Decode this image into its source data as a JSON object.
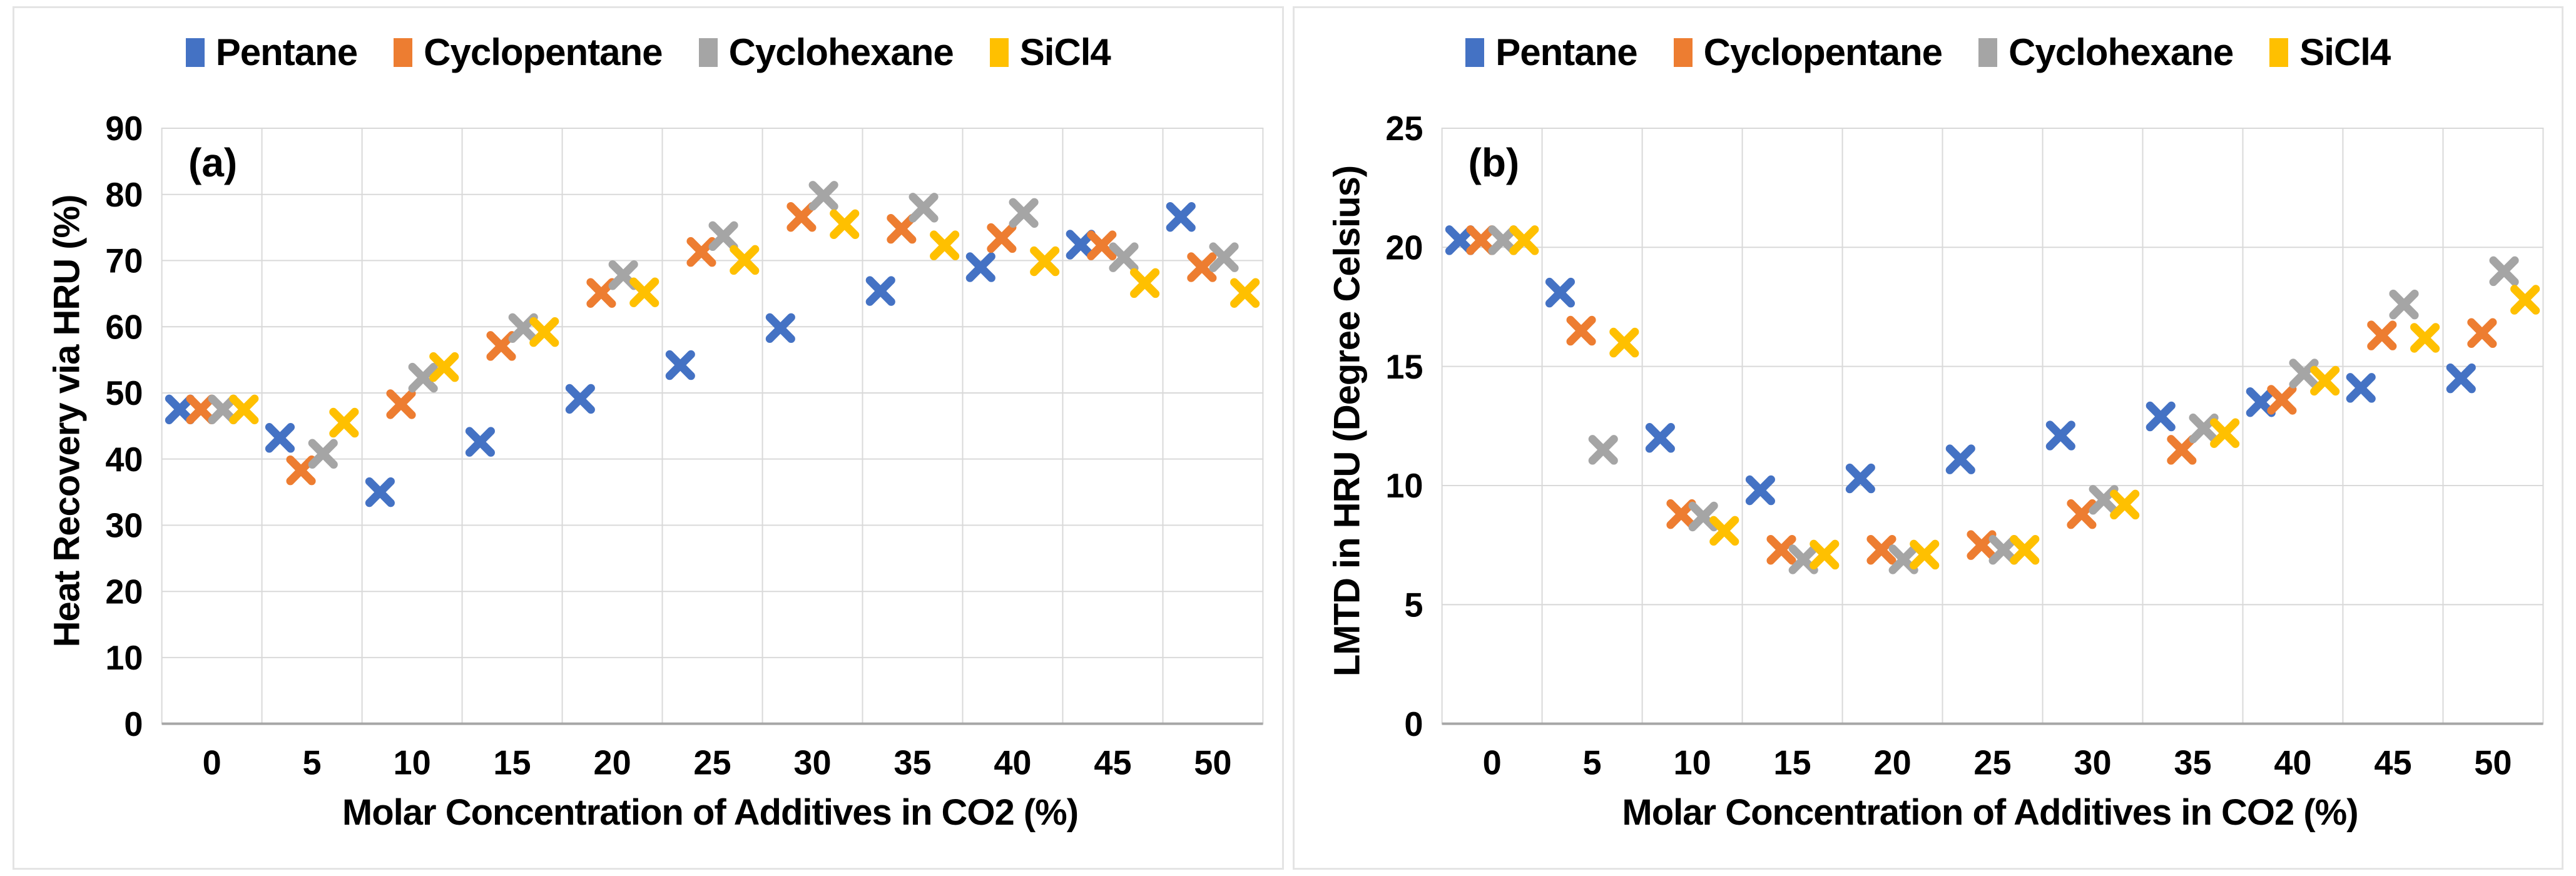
{
  "figure": {
    "background": "#ffffff",
    "panel_border_color": "#e4e4e4"
  },
  "palette": {
    "blue": "#4472C4",
    "orange": "#ED7D31",
    "gray": "#A5A5A5",
    "yellow": "#FFC000",
    "grid": "#D9D9D9",
    "axis": "#A6A6A6",
    "text": "#000000"
  },
  "legend": {
    "items": [
      {
        "label": "Pentane",
        "color": "#4472C4"
      },
      {
        "label": "Cyclopentane",
        "color": "#ED7D31"
      },
      {
        "label": "Cyclohexane",
        "color": "#A5A5A5"
      },
      {
        "label": "SiCl4",
        "color": "#FFC000"
      }
    ]
  },
  "panels": [
    {
      "letter": "(a)",
      "ylabel": "Heat Recovery via HRU (%)",
      "xlabel": "Molar Concentration of Additives in CO2 (%)"
    },
    {
      "letter": "(b)",
      "ylabel": "LMTD in HRU (Degree Celsius)",
      "xlabel": "Molar Concentration of Additives in CO2 (%)"
    }
  ],
  "chart_data": [
    {
      "type": "scatter",
      "panel": "(a)",
      "marker": "x",
      "title": "",
      "xlabel": "Molar Concentration of Additives in CO2 (%)",
      "ylabel": "Heat Recovery via HRU (%)",
      "xlim": [
        -2.5,
        52.5
      ],
      "ylim": [
        0,
        90
      ],
      "grid": true,
      "legend_position": "top",
      "x": [
        0,
        5,
        10,
        15,
        20,
        25,
        30,
        35,
        40,
        45,
        50
      ],
      "xticks": [
        0,
        5,
        10,
        15,
        20,
        25,
        30,
        35,
        40,
        45,
        50
      ],
      "yticks": [
        0,
        10,
        20,
        30,
        40,
        50,
        60,
        70,
        80,
        90
      ],
      "series": [
        {
          "name": "Pentane",
          "color": "#4472C4",
          "values": [
            47.5,
            43.2,
            35.0,
            42.6,
            49.1,
            54.2,
            59.8,
            65.4,
            69.0,
            72.4,
            76.6
          ]
        },
        {
          "name": "Cyclopentane",
          "color": "#ED7D31",
          "values": [
            47.5,
            38.3,
            48.3,
            57.1,
            65.1,
            71.3,
            76.6,
            74.8,
            73.4,
            72.3,
            69.0
          ]
        },
        {
          "name": "Cyclohexane",
          "color": "#A5A5A5",
          "values": [
            47.5,
            40.8,
            52.3,
            59.8,
            67.8,
            73.7,
            79.8,
            78.0,
            77.2,
            70.5,
            70.5
          ]
        },
        {
          "name": "SiCl4",
          "color": "#FFC000",
          "values": [
            47.5,
            45.5,
            53.9,
            59.2,
            65.2,
            70.1,
            75.5,
            72.3,
            69.9,
            66.6,
            65.1
          ]
        }
      ]
    },
    {
      "type": "scatter",
      "panel": "(b)",
      "marker": "x",
      "title": "",
      "xlabel": "Molar Concentration of Additives in CO2 (%)",
      "ylabel": "LMTD in HRU (Degree Celsius)",
      "xlim": [
        -2.5,
        52.5
      ],
      "ylim": [
        0,
        25
      ],
      "grid": true,
      "legend_position": "top",
      "x": [
        0,
        5,
        10,
        15,
        20,
        25,
        30,
        35,
        40,
        45,
        50
      ],
      "xticks": [
        0,
        5,
        10,
        15,
        20,
        25,
        30,
        35,
        40,
        45,
        50
      ],
      "yticks": [
        0,
        5,
        10,
        15,
        20,
        25
      ],
      "series": [
        {
          "name": "Pentane",
          "color": "#4472C4",
          "values": [
            20.3,
            18.1,
            12.0,
            9.8,
            10.3,
            11.1,
            12.1,
            12.9,
            13.5,
            14.1,
            14.5
          ]
        },
        {
          "name": "Cyclopentane",
          "color": "#ED7D31",
          "values": [
            20.3,
            16.5,
            8.8,
            7.3,
            7.3,
            7.5,
            8.8,
            11.5,
            13.6,
            16.3,
            16.4
          ]
        },
        {
          "name": "Cyclohexane",
          "color": "#A5A5A5",
          "values": [
            20.3,
            11.5,
            8.7,
            6.9,
            6.9,
            7.3,
            9.4,
            12.4,
            14.7,
            17.6,
            19.0
          ]
        },
        {
          "name": "SiCl4",
          "color": "#FFC000",
          "values": [
            20.3,
            16.0,
            8.1,
            7.1,
            7.1,
            7.3,
            9.2,
            12.2,
            14.4,
            16.2,
            17.8
          ]
        }
      ]
    }
  ]
}
